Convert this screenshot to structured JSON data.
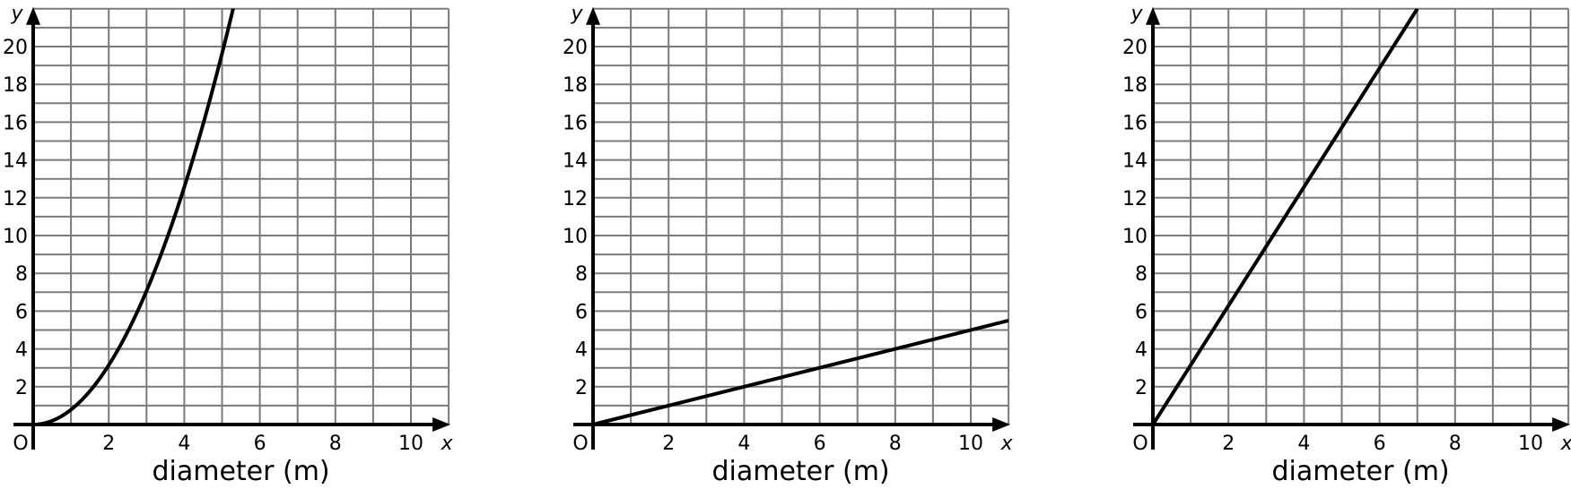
{
  "chart_data": [
    {
      "type": "line",
      "xlabel": "diameter (m)",
      "x_axis_letter": "x",
      "y_axis_letter": "y",
      "origin_label": "O",
      "xlim": [
        0,
        11
      ],
      "ylim": [
        0,
        22
      ],
      "x_ticks": [
        "2",
        "4",
        "6",
        "8",
        "10"
      ],
      "y_ticks": [
        "2",
        "4",
        "6",
        "8",
        "10",
        "12",
        "14",
        "16",
        "18",
        "20"
      ],
      "grid": true,
      "series": [
        {
          "x": [
            0,
            1,
            2,
            3,
            4,
            5,
            5.3
          ],
          "y": [
            0,
            0.79,
            3.14,
            7.07,
            12.57,
            19.63,
            22.06
          ]
        }
      ]
    },
    {
      "type": "line",
      "xlabel": "diameter (m)",
      "x_axis_letter": "x",
      "y_axis_letter": "y",
      "origin_label": "O",
      "xlim": [
        0,
        11
      ],
      "ylim": [
        0,
        22
      ],
      "x_ticks": [
        "2",
        "4",
        "6",
        "8",
        "10"
      ],
      "y_ticks": [
        "2",
        "4",
        "6",
        "8",
        "10",
        "12",
        "14",
        "16",
        "18",
        "20"
      ],
      "grid": true,
      "series": [
        {
          "x": [
            0,
            11
          ],
          "y": [
            0,
            5.5
          ]
        }
      ]
    },
    {
      "type": "line",
      "xlabel": "diameter (m)",
      "x_axis_letter": "x",
      "y_axis_letter": "y",
      "origin_label": "O",
      "xlim": [
        0,
        11
      ],
      "ylim": [
        0,
        22
      ],
      "x_ticks": [
        "2",
        "4",
        "6",
        "8",
        "10"
      ],
      "y_ticks": [
        "2",
        "4",
        "6",
        "8",
        "10",
        "12",
        "14",
        "16",
        "18",
        "20"
      ],
      "grid": true,
      "series": [
        {
          "x": [
            0,
            7.0
          ],
          "y": [
            0,
            22
          ]
        }
      ]
    }
  ],
  "colors": {
    "grid": "#7a7a7a",
    "axis": "#000000",
    "line": "#000000"
  }
}
